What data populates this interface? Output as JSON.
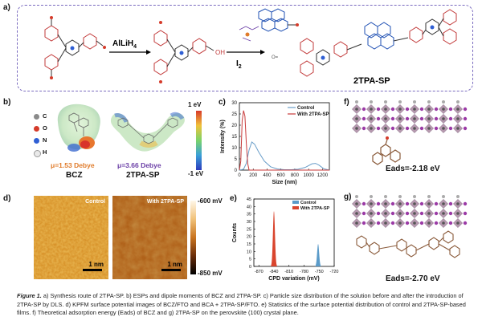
{
  "panels": {
    "a": "a)",
    "b": "b)",
    "c": "c)",
    "d": "d)",
    "e": "e)",
    "f": "f)",
    "g": "g)"
  },
  "scheme": {
    "reagent1": "AlLiH",
    "reagent1_sub": "4",
    "reagent2": "I",
    "reagent2_sub": "2",
    "product": "2TPA-SP",
    "oh": "OH"
  },
  "esp": {
    "atoms": [
      {
        "symbol": "C",
        "color": "#8a8a8a"
      },
      {
        "symbol": "O",
        "color": "#d53b2a"
      },
      {
        "symbol": "N",
        "color": "#2f5fd4"
      },
      {
        "symbol": "H",
        "color": "#e9e9e9"
      }
    ],
    "bcz_dipole": "μ=1.53 Debye",
    "bcz_name": "BCZ",
    "tpa_dipole": "μ=3.66 Debye",
    "tpa_name": "2TPA-SP",
    "colorbar_top": "1 eV",
    "colorbar_bottom": "-1 eV",
    "accent_orange": "#e07b2a",
    "accent_purple": "#6a3ea6"
  },
  "chart_data": [
    {
      "type": "line",
      "title": "",
      "xlabel": "Size (nm)",
      "ylabel": "Intensity (%)",
      "xlim": [
        0,
        1300
      ],
      "ylim": [
        0,
        30
      ],
      "xticks": [
        "0",
        "200",
        "400",
        "600",
        "800",
        "1000",
        "1200"
      ],
      "yticks": [
        "0",
        "5",
        "10",
        "15",
        "20",
        "25",
        "30"
      ],
      "legend": "top-right",
      "series": [
        {
          "name": "Control",
          "color": "#6a9ec9",
          "x": [
            0,
            60,
            100,
            140,
            180,
            220,
            280,
            360,
            450,
            550,
            650,
            750,
            850,
            950,
            1050,
            1100,
            1150,
            1220,
            1300
          ],
          "y": [
            0,
            0.4,
            3,
            9,
            12.5,
            11.5,
            8,
            4,
            1.5,
            0.5,
            0.2,
            0.2,
            0.4,
            1.2,
            2.8,
            3,
            2.2,
            0.6,
            0
          ]
        },
        {
          "name": "With 2TPA-SP",
          "color": "#c83a3a",
          "x": [
            0,
            20,
            40,
            60,
            80,
            100,
            120,
            140,
            300,
            1300
          ],
          "y": [
            0,
            4,
            22,
            26.5,
            24,
            12,
            3,
            0,
            0,
            0
          ]
        }
      ]
    },
    {
      "type": "bar",
      "title": "",
      "xlabel": "CPD variation (mV)",
      "ylabel": "Counts",
      "xlim": [
        -880,
        -720
      ],
      "ylim": [
        0,
        45
      ],
      "xticks": [
        "-870",
        "-840",
        "-810",
        "-780",
        "-750",
        "-720"
      ],
      "yticks": [
        "0",
        "5",
        "10",
        "15",
        "20",
        "25",
        "30",
        "35",
        "40",
        "45"
      ],
      "legend": "top-right",
      "series": [
        {
          "name": "Control",
          "color": "#5b9bc9",
          "center": -752,
          "peak": 15,
          "width": 4
        },
        {
          "name": "With 2TPA-SP",
          "color": "#d9452e",
          "center": -840,
          "peak": 37,
          "width": 4
        }
      ]
    }
  ],
  "afm": {
    "control_label": "Control",
    "tpa_label": "With 2TPA-SP",
    "scale": "1 nm",
    "cbar_top": "-600 mV",
    "cbar_bottom": "-850 mV"
  },
  "adsorption": {
    "f_eads": "Eads=-2.18 eV",
    "g_eads": "Eads=-2.70 eV"
  },
  "caption": {
    "label": "Figure 1.",
    "text": " a) Synthesis route of 2TPA-SP. b) ESPs and dipole moments of BCZ and 2TPA-SP. c) Particle size distribution of the solution before and after the introduction of 2TPA-SP by DLS. d) KPFM surface potential images of BCZ/FTO and BCA + 2TPA-SP/FTO. e) Statistics of the surface potential distribution of control and 2TPA-SP-based films. f) Theoretical adsorption energy (Eads) of BCZ and g) 2TPA-SP on the perovskite (100) crystal plane."
  }
}
